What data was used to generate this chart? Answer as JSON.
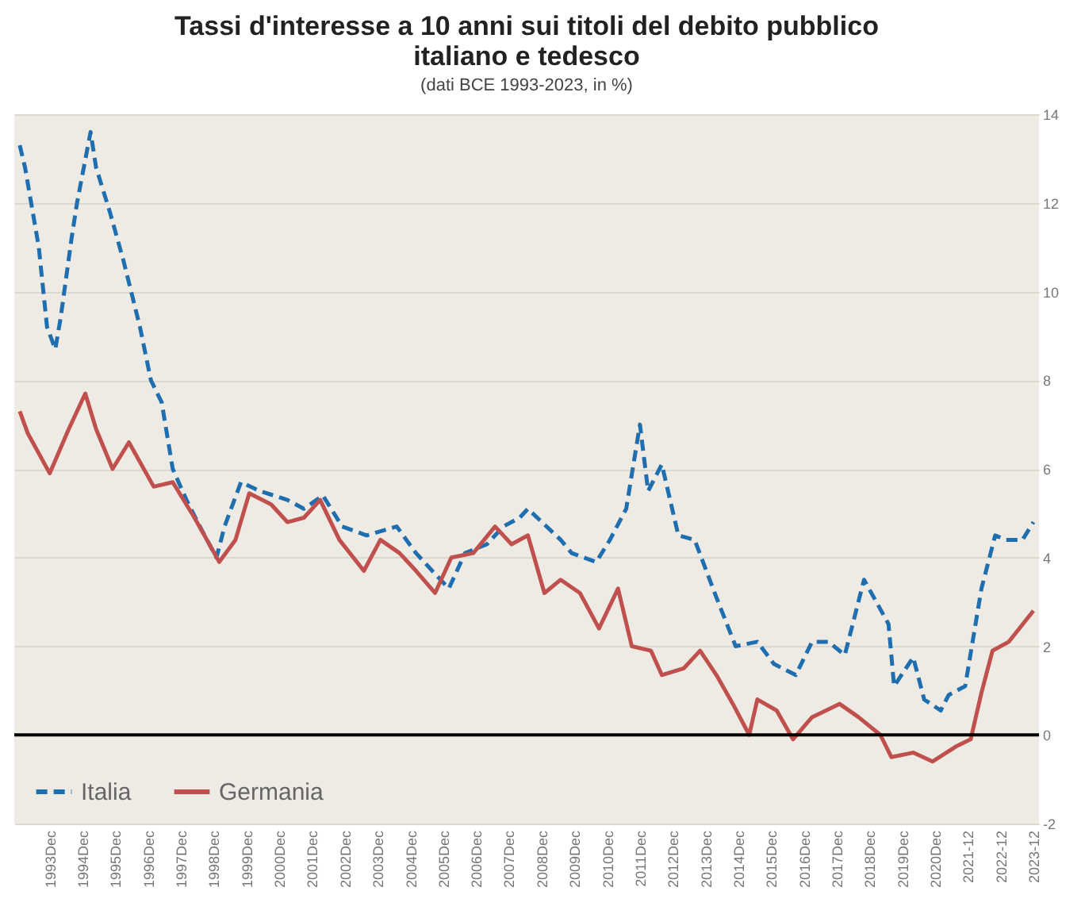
{
  "chart_data": {
    "type": "line",
    "title": "Tassi d'interesse a 10 anni sui titoli del debito pubblico italiano e tedesco",
    "subtitle": "(dati BCE 1993-2023, in %)",
    "xlim": [
      "1992-11",
      "2024-02"
    ],
    "ylim": [
      -2,
      14
    ],
    "yticks": [
      -2,
      0,
      2,
      4,
      6,
      8,
      10,
      12,
      14
    ],
    "xticks": [
      {
        "value": "1993-12",
        "label": "1993Dec"
      },
      {
        "value": "1994-12",
        "label": "1994Dec"
      },
      {
        "value": "1995-12",
        "label": "1995Dec"
      },
      {
        "value": "1996-12",
        "label": "1996Dec"
      },
      {
        "value": "1997-12",
        "label": "1997Dec"
      },
      {
        "value": "1998-12",
        "label": "1998Dec"
      },
      {
        "value": "1999-12",
        "label": "1999Dec"
      },
      {
        "value": "2000-12",
        "label": "2000Dec"
      },
      {
        "value": "2001-12",
        "label": "2001Dec"
      },
      {
        "value": "2002-12",
        "label": "2002Dec"
      },
      {
        "value": "2003-12",
        "label": "2003Dec"
      },
      {
        "value": "2004-12",
        "label": "2004Dec"
      },
      {
        "value": "2005-12",
        "label": "2005Dec"
      },
      {
        "value": "2006-12",
        "label": "2006Dec"
      },
      {
        "value": "2007-12",
        "label": "2007Dec"
      },
      {
        "value": "2008-12",
        "label": "2008Dec"
      },
      {
        "value": "2009-12",
        "label": "2009Dec"
      },
      {
        "value": "2010-12",
        "label": "2010Dec"
      },
      {
        "value": "2011-12",
        "label": "2011Dec"
      },
      {
        "value": "2012-12",
        "label": "2012Dec"
      },
      {
        "value": "2013-12",
        "label": "2013Dec"
      },
      {
        "value": "2014-12",
        "label": "2014Dec"
      },
      {
        "value": "2015-12",
        "label": "2015Dec"
      },
      {
        "value": "2016-12",
        "label": "2016Dec"
      },
      {
        "value": "2017-12",
        "label": "2017Dec"
      },
      {
        "value": "2018-12",
        "label": "2018Dec"
      },
      {
        "value": "2019-12",
        "label": "2019Dec"
      },
      {
        "value": "2020-12",
        "label": "2020Dec"
      },
      {
        "value": "2021-12",
        "label": "2021-12"
      },
      {
        "value": "2022-12",
        "label": "2022-12"
      },
      {
        "value": "2023-12",
        "label": "2023-12"
      }
    ],
    "grid": "y",
    "legend": "bottom left",
    "ref_lines": [
      {
        "axis": "y",
        "value": 0,
        "color": "#000000"
      }
    ],
    "series": [
      {
        "name": "Italia",
        "color": "#1f6fb0",
        "line_style": "dashed",
        "x": [
          "1993-01",
          "1993-03",
          "1993-08",
          "1993-11",
          "1994-02",
          "1994-04",
          "1994-08",
          "1994-10",
          "1995-03",
          "1995-05",
          "1995-10",
          "1996-03",
          "1996-09",
          "1997-01",
          "1997-05",
          "1997-09",
          "1998-02",
          "1998-07",
          "1999-01",
          "1999-04",
          "1999-10",
          "2000-05",
          "2001-03",
          "2001-09",
          "2002-04",
          "2002-11",
          "2003-08",
          "2004-07",
          "2005-02",
          "2005-08",
          "2006-02",
          "2006-08",
          "2007-04",
          "2007-10",
          "2008-04",
          "2008-07",
          "2009-07",
          "2009-11",
          "2010-08",
          "2011-01",
          "2011-07",
          "2011-12",
          "2012-03",
          "2012-08",
          "2013-02",
          "2013-08",
          "2014-04",
          "2014-11",
          "2015-07",
          "2016-01",
          "2016-09",
          "2017-03",
          "2017-09",
          "2018-03",
          "2018-10",
          "2019-07",
          "2019-09",
          "2020-04",
          "2020-08",
          "2021-02",
          "2021-05",
          "2021-11",
          "2022-05",
          "2022-10",
          "2023-02",
          "2023-08",
          "2023-12"
        ],
        "values": [
          13.3,
          12.8,
          11,
          9.2,
          8.7,
          9.4,
          11.2,
          12,
          13.6,
          12.8,
          11.8,
          10.7,
          9.2,
          8,
          7.5,
          6,
          5.3,
          4.7,
          4,
          4.7,
          5.7,
          5.5,
          5.3,
          5.1,
          5.4,
          4.7,
          4.5,
          4.7,
          4.1,
          3.7,
          3.3,
          4.1,
          4.3,
          4.7,
          4.9,
          5.1,
          4.4,
          4.1,
          3.9,
          4.4,
          5.1,
          7,
          5.5,
          6.1,
          4.5,
          4.4,
          3.1,
          2,
          2.1,
          1.6,
          1.35,
          2.1,
          2.1,
          1.8,
          3.5,
          2.5,
          1.1,
          1.75,
          0.8,
          0.55,
          0.9,
          1.1,
          3.3,
          4.5,
          4.4,
          4.4,
          4.8
        ]
      },
      {
        "name": "Germania",
        "color": "#c0504d",
        "line_style": "solid",
        "x": [
          "1993-01",
          "1993-04",
          "1993-12",
          "1994-07",
          "1995-01",
          "1995-05",
          "1995-11",
          "1996-05",
          "1997-02",
          "1997-09",
          "1998-05",
          "1999-02",
          "1999-08",
          "2000-01",
          "2000-09",
          "2001-03",
          "2001-09",
          "2002-03",
          "2002-10",
          "2003-07",
          "2004-01",
          "2004-08",
          "2005-02",
          "2005-09",
          "2006-03",
          "2006-11",
          "2007-07",
          "2008-01",
          "2008-07",
          "2009-01",
          "2009-07",
          "2010-02",
          "2010-09",
          "2011-04",
          "2011-09",
          "2012-04",
          "2012-08",
          "2013-04",
          "2013-10",
          "2014-04",
          "2014-10",
          "2015-04",
          "2015-07",
          "2016-02",
          "2016-08",
          "2017-03",
          "2018-01",
          "2018-08",
          "2019-04",
          "2019-08",
          "2020-04",
          "2020-11",
          "2021-08",
          "2022-01",
          "2022-05",
          "2022-09",
          "2023-03",
          "2023-12"
        ],
        "values": [
          7.3,
          6.8,
          5.9,
          6.9,
          7.7,
          6.9,
          6,
          6.6,
          5.6,
          5.7,
          4.9,
          3.9,
          4.4,
          5.45,
          5.2,
          4.8,
          4.9,
          5.3,
          4.4,
          3.7,
          4.4,
          4.1,
          3.7,
          3.2,
          4,
          4.1,
          4.7,
          4.3,
          4.5,
          3.2,
          3.5,
          3.2,
          2.4,
          3.3,
          2,
          1.9,
          1.35,
          1.5,
          1.9,
          1.35,
          0.7,
          0,
          0.8,
          0.55,
          -0.1,
          0.4,
          0.7,
          0.4,
          0,
          -0.5,
          -0.4,
          -0.6,
          -0.25,
          -0.1,
          0.95,
          1.9,
          2.1,
          2.8
        ]
      }
    ]
  }
}
